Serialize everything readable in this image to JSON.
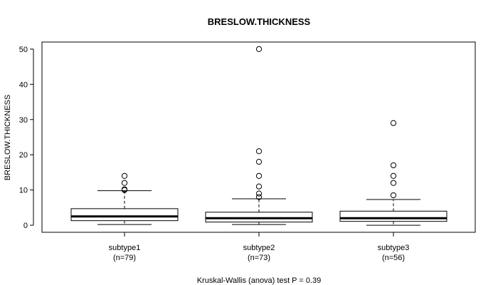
{
  "chart_data": {
    "type": "boxplot",
    "title": "BRESLOW.THICKNESS",
    "ylabel": "BRESLOW.THICKNESS",
    "xlabel": "Kruskal-Wallis (anova) test P = 0.39",
    "ylim": [
      -2,
      52
    ],
    "yticks": [
      0,
      10,
      20,
      30,
      40,
      50
    ],
    "groups": [
      {
        "name": "subtype1",
        "n_label": "(n=79)",
        "whisker_low": 0.2,
        "q1": 1.3,
        "median": 2.5,
        "q3": 4.7,
        "whisker_high": 9.8,
        "outliers": [
          10.0,
          10.2,
          12.0,
          14.0
        ]
      },
      {
        "name": "subtype2",
        "n_label": "(n=73)",
        "whisker_low": 0.2,
        "q1": 0.9,
        "median": 2.0,
        "q3": 3.7,
        "whisker_high": 7.5,
        "outliers": [
          8.0,
          9.0,
          11.0,
          14.0,
          18.0,
          21.0,
          50.0
        ]
      },
      {
        "name": "subtype3",
        "n_label": "(n=56)",
        "whisker_low": 0.0,
        "q1": 1.1,
        "median": 2.0,
        "q3": 4.0,
        "whisker_high": 7.3,
        "outliers": [
          8.5,
          12.0,
          14.0,
          17.0,
          29.0
        ]
      }
    ]
  }
}
